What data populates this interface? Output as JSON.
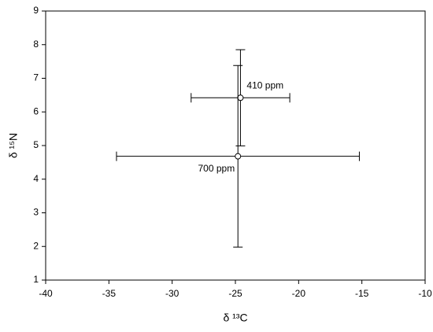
{
  "chart_data": {
    "type": "scatter",
    "x_label": "δ ¹³C",
    "y_label": "δ ¹⁵N",
    "xlim": [
      -40,
      -10
    ],
    "xticks": [
      -40,
      -35,
      -30,
      -25,
      -20,
      -15,
      -10
    ],
    "ylim": [
      1,
      9
    ],
    "yticks": [
      1,
      2,
      3,
      4,
      5,
      6,
      7,
      8,
      9
    ],
    "points": [
      {
        "label": "410 ppm",
        "x": -24.6,
        "y": 6.42,
        "xerr": 3.9,
        "yerr": 1.43
      },
      {
        "label": "700 ppm",
        "x": -24.8,
        "y": 4.68,
        "xerr": 9.6,
        "yerr": 2.7
      }
    ]
  }
}
